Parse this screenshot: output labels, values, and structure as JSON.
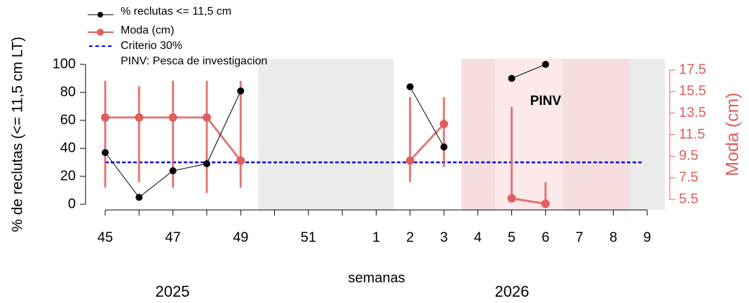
{
  "chart_data": {
    "type": "line",
    "x_label": "semanas",
    "y_label": "% de reclutas (<= 11,5 cm LT)",
    "y2_label": "Moda (cm)",
    "years": [
      "2025",
      "2026"
    ],
    "annotation": "PINV",
    "legend_note": "PINV: Pesca de investigacion",
    "categories": [
      "45",
      null,
      "47",
      null,
      "49",
      null,
      "51",
      null,
      "1",
      "2",
      "3",
      "4",
      "5",
      "6",
      "7",
      "8",
      "9"
    ],
    "series": [
      {
        "name": "% reclutas <= 11,5 cm",
        "color": "#000000",
        "values": [
          37,
          5,
          24,
          29,
          81,
          null,
          null,
          null,
          null,
          84,
          41,
          null,
          90,
          100,
          null,
          null,
          null
        ]
      },
      {
        "name": "Moda (cm)",
        "color": "#df5f5f",
        "axis": "y2",
        "values": [
          13.1,
          13.1,
          13.1,
          13.1,
          9.1,
          null,
          null,
          null,
          null,
          9.1,
          12.5,
          null,
          5.6,
          5.1,
          null,
          null,
          null
        ],
        "lower": [
          6.6,
          7.1,
          6.6,
          6.1,
          6.6,
          null,
          null,
          null,
          null,
          7.1,
          8.5,
          null,
          5.6,
          5.1,
          null,
          null,
          null
        ],
        "upper": [
          16.5,
          16.0,
          16.5,
          16.5,
          16.5,
          null,
          null,
          null,
          null,
          15.0,
          15.0,
          null,
          14.1,
          7.1,
          null,
          null,
          null
        ]
      }
    ],
    "reference_line": {
      "name": "Criterio 30%",
      "value": 30,
      "color": "#0000ee"
    },
    "ylim": [
      -4,
      104
    ],
    "yticks": [
      0,
      20,
      40,
      60,
      80,
      100
    ],
    "y2lim": [
      4.53,
      18.54
    ],
    "y2ticks": [
      5.5,
      7.5,
      9.5,
      11.5,
      13.5,
      15.5,
      17.5
    ],
    "legend": "top-left"
  }
}
